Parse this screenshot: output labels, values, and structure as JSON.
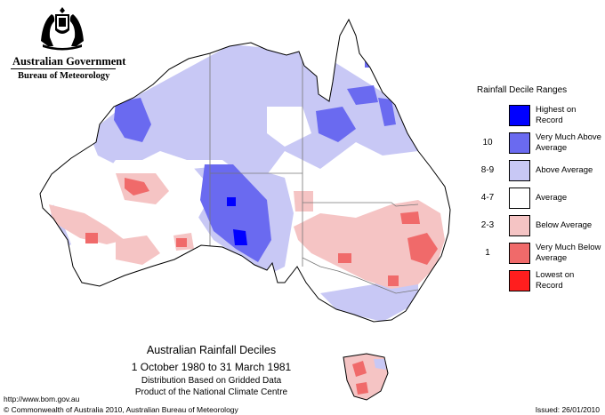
{
  "header": {
    "government": "Australian Government",
    "bureau": "Bureau of Meteorology"
  },
  "legend": {
    "title": "Rainfall Decile Ranges",
    "items": [
      {
        "code": "",
        "label": "Highest on Record",
        "color": "#0000ff"
      },
      {
        "code": "10",
        "label": "Very Much Above Average",
        "color": "#6a6af0"
      },
      {
        "code": "8-9",
        "label": "Above Average",
        "color": "#c8c8f5"
      },
      {
        "code": "4-7",
        "label": "Average",
        "color": "#ffffff"
      },
      {
        "code": "2-3",
        "label": "Below Average",
        "color": "#f5c4c4"
      },
      {
        "code": "1",
        "label": "Very Much Below Average",
        "color": "#f06a6a"
      },
      {
        "code": "",
        "label": "Lowest on Record",
        "color": "#ff1e1e"
      }
    ]
  },
  "map": {
    "title": "Australian Rainfall Deciles",
    "period": "1 October 1980 to 31 March 1981",
    "subtitle_line1": "Distribution Based on Gridded Data",
    "subtitle_line2": "Product of the National Climate Centre"
  },
  "footer": {
    "url": "http://www.bom.gov.au",
    "copyright": "© Commonwealth of Australia 2010, Australian Bureau of Meteorology",
    "issued": "Issued: 26/01/2010"
  }
}
